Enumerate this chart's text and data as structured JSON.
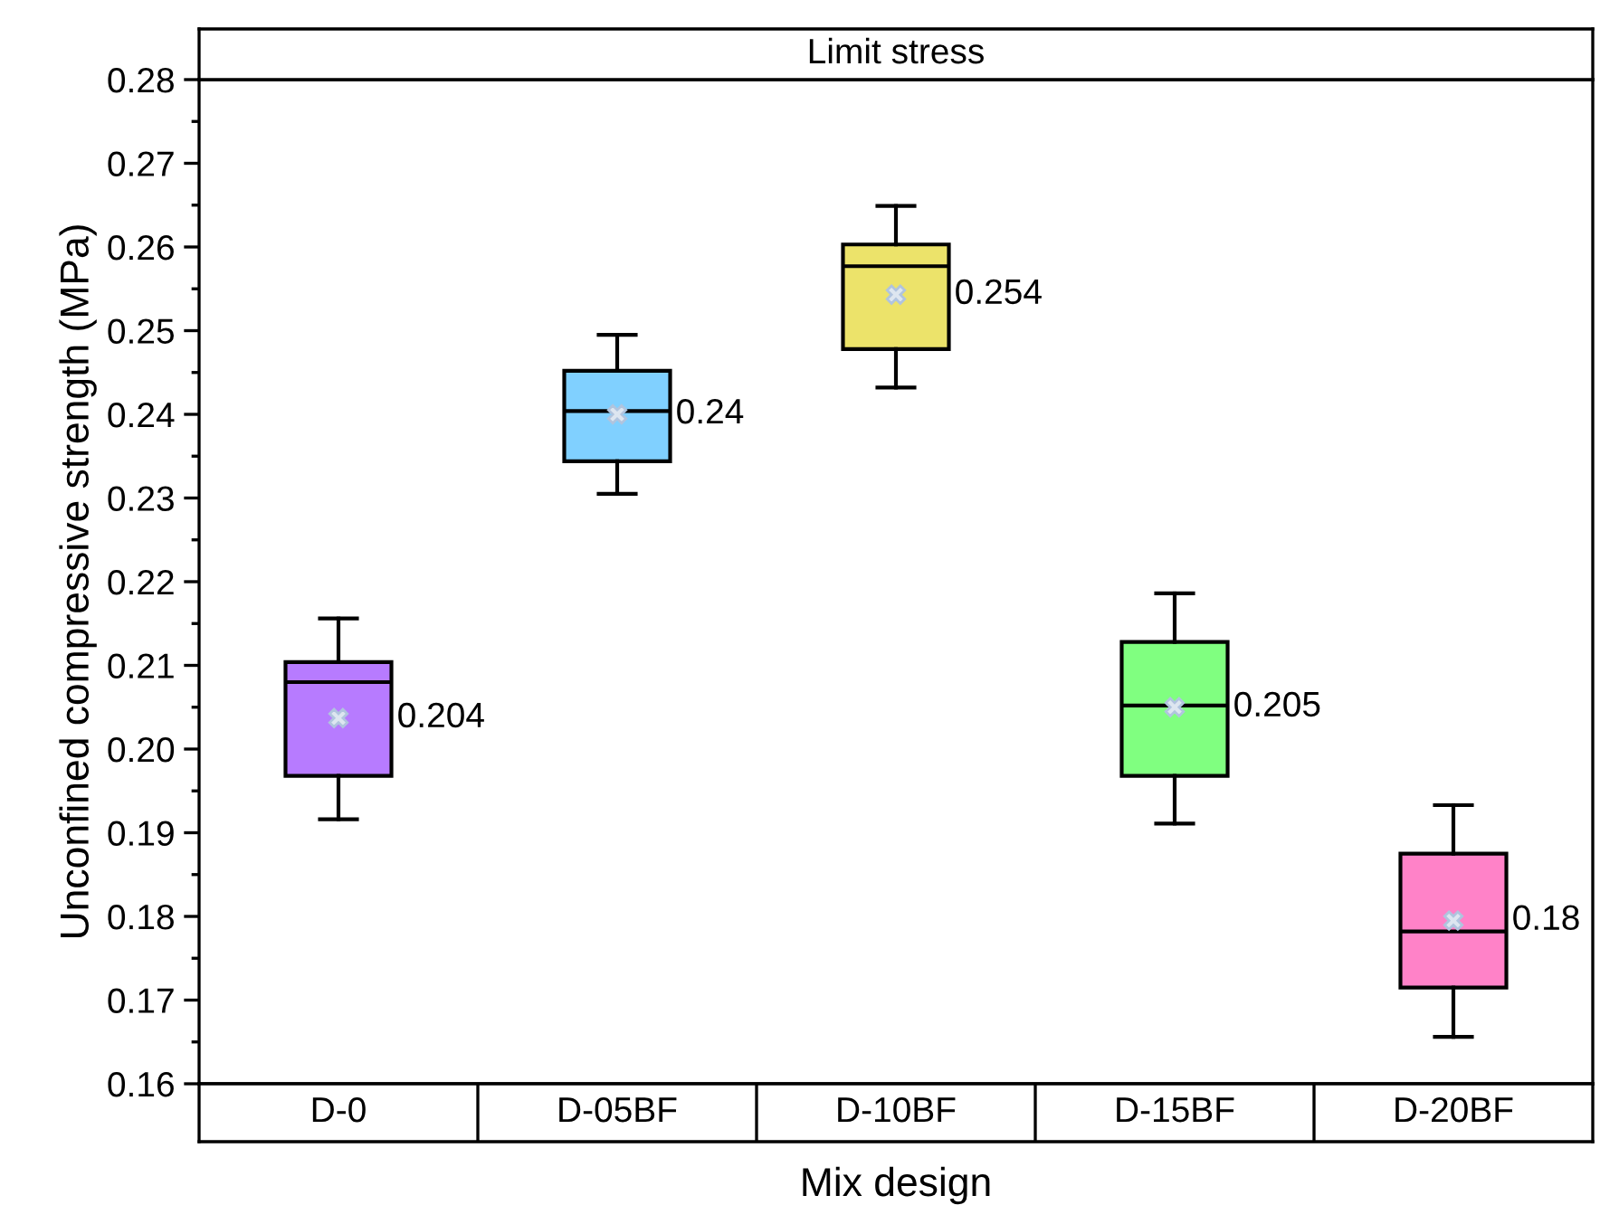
{
  "chart_data": {
    "type": "box",
    "title": "Limit stress",
    "xlabel": "Mix design",
    "ylabel": "Unconfined compressive strength (MPa)",
    "categories": [
      "D-0",
      "D-05BF",
      "D-10BF",
      "D-15BF",
      "D-20BF"
    ],
    "colors": [
      "#b77bff",
      "#80d0ff",
      "#ece36a",
      "#80ff80",
      "#ff82c8"
    ],
    "boxes": [
      {
        "low": 0.1916,
        "q1": 0.1968,
        "median": 0.208,
        "q3": 0.2104,
        "high": 0.2156,
        "mean": 0.2037
      },
      {
        "low": 0.2305,
        "q1": 0.2344,
        "median": 0.2404,
        "q3": 0.2452,
        "high": 0.2495,
        "mean": 0.24
      },
      {
        "low": 0.2432,
        "q1": 0.2478,
        "median": 0.2577,
        "q3": 0.2603,
        "high": 0.2649,
        "mean": 0.2543
      },
      {
        "low": 0.1911,
        "q1": 0.1968,
        "median": 0.2052,
        "q3": 0.2128,
        "high": 0.2186,
        "mean": 0.205
      },
      {
        "low": 0.1656,
        "q1": 0.1715,
        "median": 0.1782,
        "q3": 0.1875,
        "high": 0.1933,
        "mean": 0.1795
      }
    ],
    "annotations": [
      "0.204",
      "0.24",
      "0.254",
      "0.205",
      "0.18"
    ],
    "ylim": [
      0.16,
      0.28
    ],
    "yticks": [
      {
        "value": 0.16,
        "label": "0.16"
      },
      {
        "value": 0.17,
        "label": "0.17"
      },
      {
        "value": 0.18,
        "label": "0.18"
      },
      {
        "value": 0.19,
        "label": "0.19"
      },
      {
        "value": 0.2,
        "label": "0.20"
      },
      {
        "value": 0.21,
        "label": "0.21"
      },
      {
        "value": 0.22,
        "label": "0.22"
      },
      {
        "value": 0.23,
        "label": "0.23"
      },
      {
        "value": 0.24,
        "label": "0.24"
      },
      {
        "value": 0.25,
        "label": "0.25"
      },
      {
        "value": 0.26,
        "label": "0.26"
      },
      {
        "value": 0.27,
        "label": "0.27"
      },
      {
        "value": 0.28,
        "label": "0.28"
      }
    ],
    "grid": false
  }
}
